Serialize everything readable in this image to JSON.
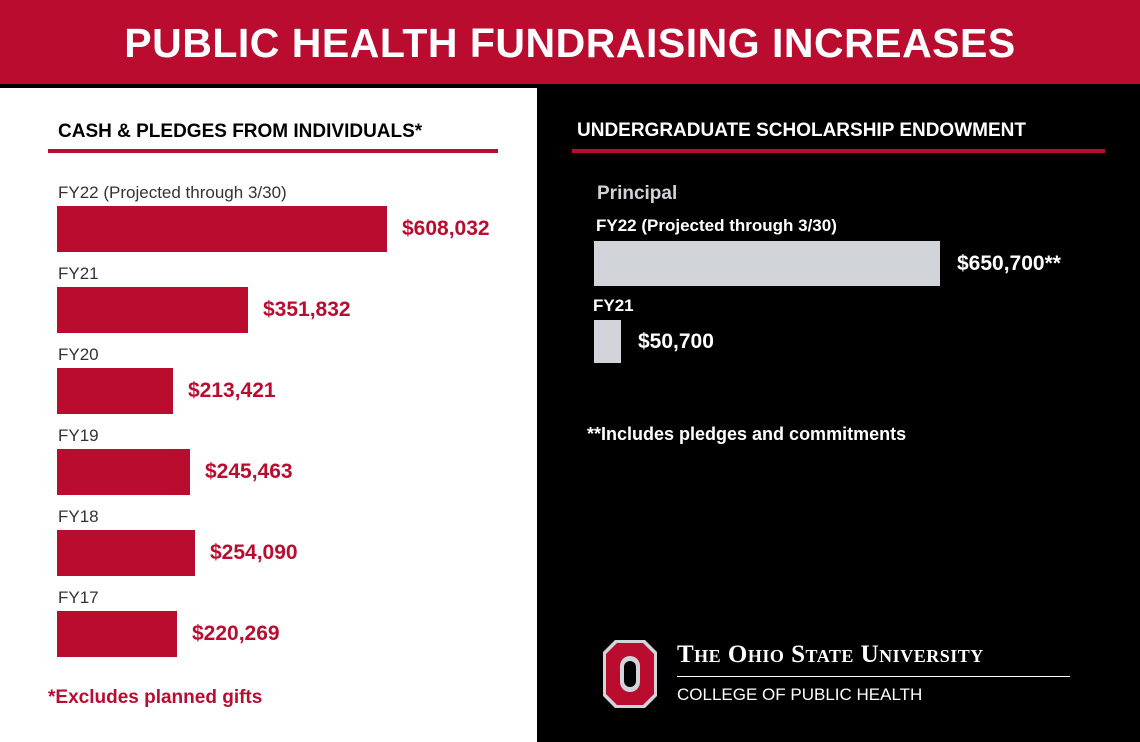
{
  "title": "PUBLIC HEALTH FUNDRAISING INCREASES",
  "colors": {
    "scarlet": "#ba0c2f",
    "gray": "#d1d5d9",
    "black": "#000000"
  },
  "chart_data": [
    {
      "type": "bar",
      "orientation": "horizontal",
      "title": "CASH & PLEDGES FROM INDIVIDUALS*",
      "categories": [
        "FY22 (Projected through 3/30)",
        "FY21",
        "FY20",
        "FY19",
        "FY18",
        "FY17"
      ],
      "values": [
        608032,
        351832,
        213421,
        245463,
        254090,
        220269
      ],
      "value_labels": [
        "$608,032",
        "$351,832",
        "$213,421",
        "$245,463",
        "$254,090",
        "$220,269"
      ],
      "footnote": "*Excludes planned gifts"
    },
    {
      "type": "bar",
      "orientation": "horizontal",
      "title": "UNDERGRADUATE SCHOLARSHIP ENDOWMENT",
      "subtitle": "Principal",
      "categories": [
        "FY22 (Projected through 3/30)",
        "FY21"
      ],
      "values": [
        650700,
        50700
      ],
      "value_labels": [
        "$650,700**",
        "$50,700"
      ],
      "footnote": "**Includes pledges and commitments"
    }
  ],
  "branding": {
    "university": "The Ohio State University",
    "college": "COLLEGE OF PUBLIC HEALTH",
    "logo_letter": "O"
  }
}
